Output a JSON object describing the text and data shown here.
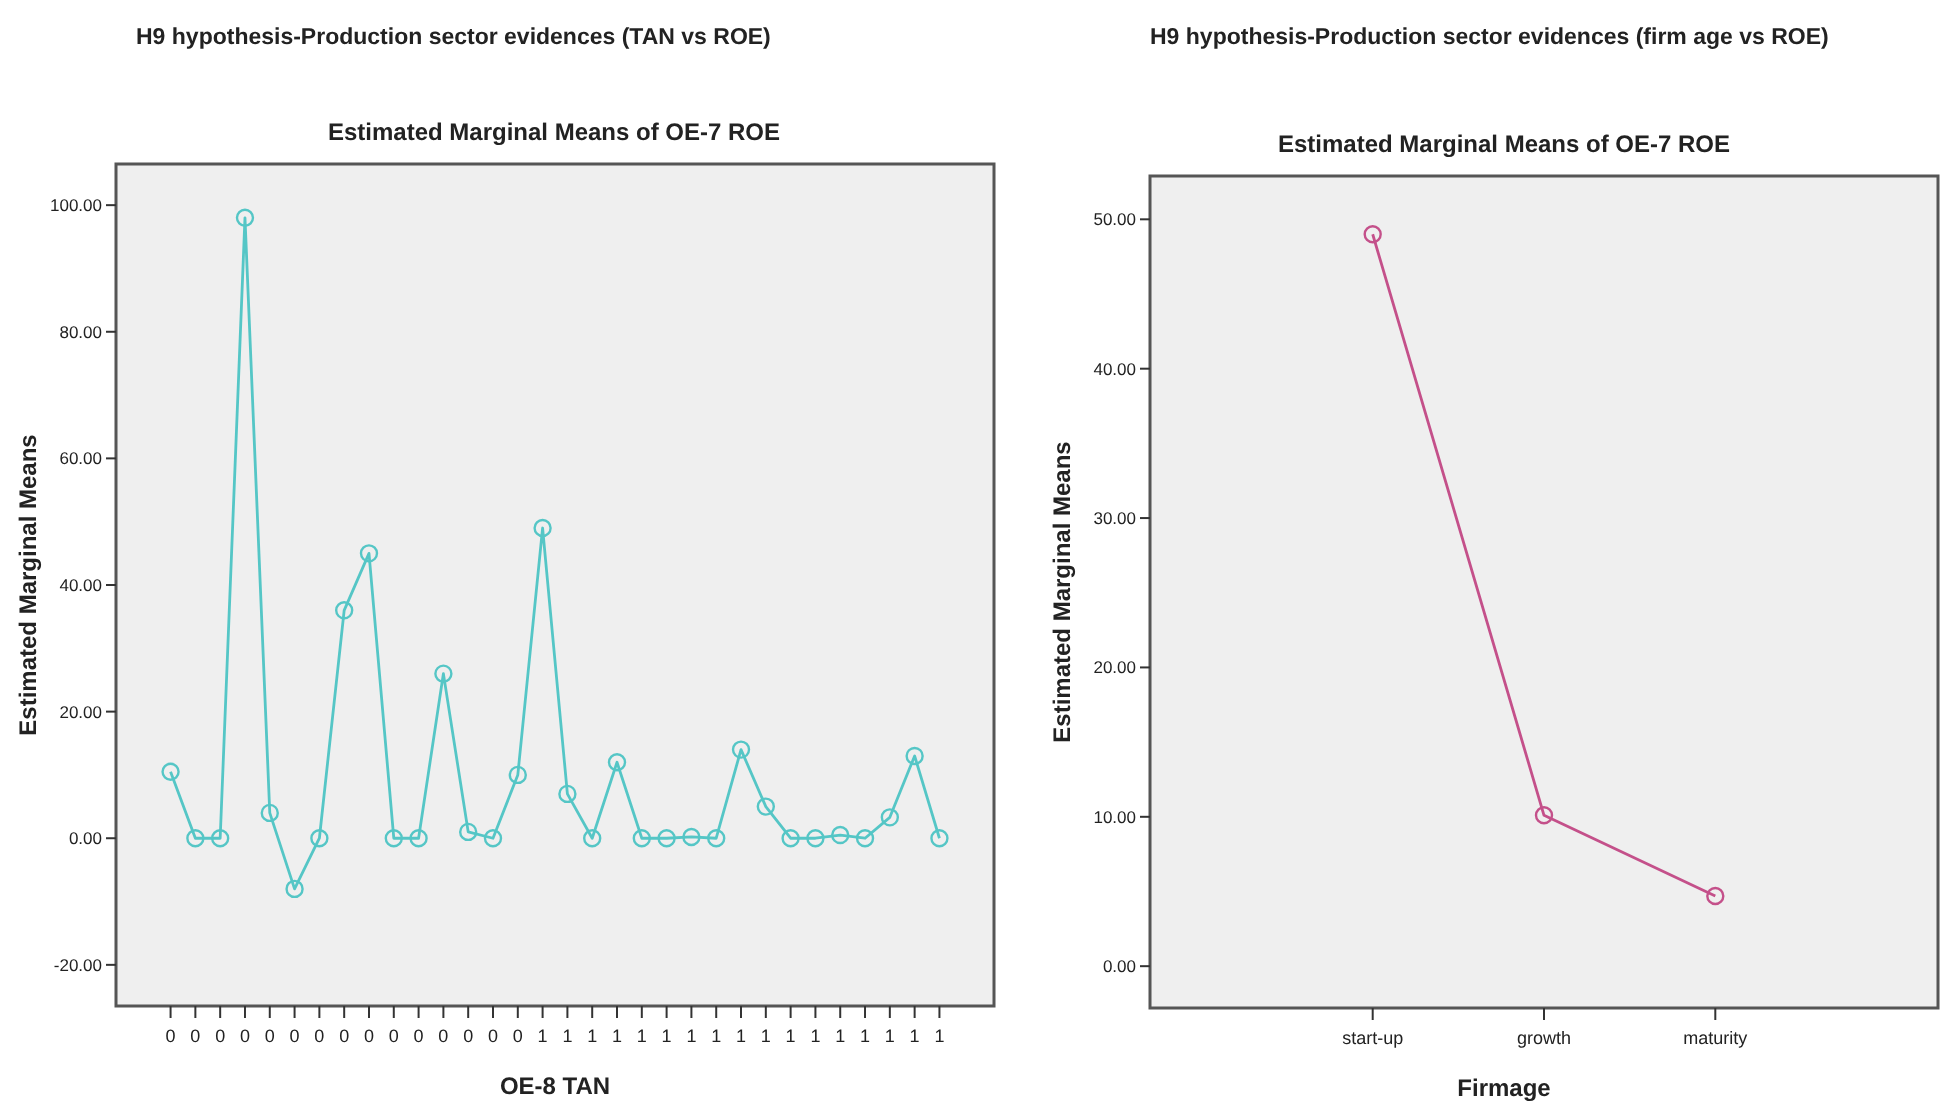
{
  "chart_data": [
    {
      "type": "line",
      "title": "H9 hypothesis-Production sector evidences (TAN vs ROE)",
      "subtitle": "Estimated Marginal Means of OE-7 ROE",
      "xlabel": "OE-8 TAN",
      "ylabel": "Estimated Marginal Means",
      "categories": [
        "0",
        "0",
        "0",
        "0",
        "0",
        "0",
        "0",
        "0",
        "0",
        "0",
        "0",
        "0",
        "0",
        "0",
        "0",
        "1",
        "1",
        "1",
        "1",
        "1",
        "1",
        "1",
        "1",
        "1",
        "1",
        "1",
        "1",
        "1",
        "1",
        "1",
        "1",
        "1"
      ],
      "values": [
        10.5,
        0,
        0,
        98,
        4,
        -8,
        0,
        36,
        45,
        0,
        0,
        26,
        1,
        0,
        10,
        49,
        7,
        0,
        12,
        0,
        0,
        0.2,
        0,
        14,
        5,
        0,
        0,
        0.5,
        0,
        3.3,
        13,
        0
      ],
      "color": "#55c6c6",
      "marker": "circle",
      "line_style": "solid",
      "grid": false,
      "ylim": [
        -26.5,
        106.5
      ],
      "yticks": [
        {
          "value": -20,
          "label": "-20.00"
        },
        {
          "value": 0,
          "label": "0.00"
        },
        {
          "value": 20,
          "label": "20.00"
        },
        {
          "value": 40,
          "label": "40.00"
        },
        {
          "value": 60,
          "label": "60.00"
        },
        {
          "value": 80,
          "label": "80.00"
        },
        {
          "value": 100,
          "label": "100.00"
        }
      ]
    },
    {
      "type": "line",
      "title": "H9 hypothesis-Production sector evidences (firm age vs ROE)",
      "subtitle": "Estimated Marginal Means of OE-7 ROE",
      "xlabel": "Firmage",
      "ylabel": "Estimated Marginal Means",
      "categories": [
        "start-up",
        "growth",
        "maturity"
      ],
      "values": [
        49,
        10.1,
        4.7
      ],
      "color": "#c4508a",
      "marker": "circle",
      "line_style": "solid",
      "grid": false,
      "ylim": [
        -2.8,
        52.9
      ],
      "yticks": [
        {
          "value": 0,
          "label": "0.00"
        },
        {
          "value": 10,
          "label": "10.00"
        },
        {
          "value": 20,
          "label": "20.00"
        },
        {
          "value": 30,
          "label": "30.00"
        },
        {
          "value": 40,
          "label": "40.00"
        },
        {
          "value": 50,
          "label": "50.00"
        }
      ]
    }
  ]
}
